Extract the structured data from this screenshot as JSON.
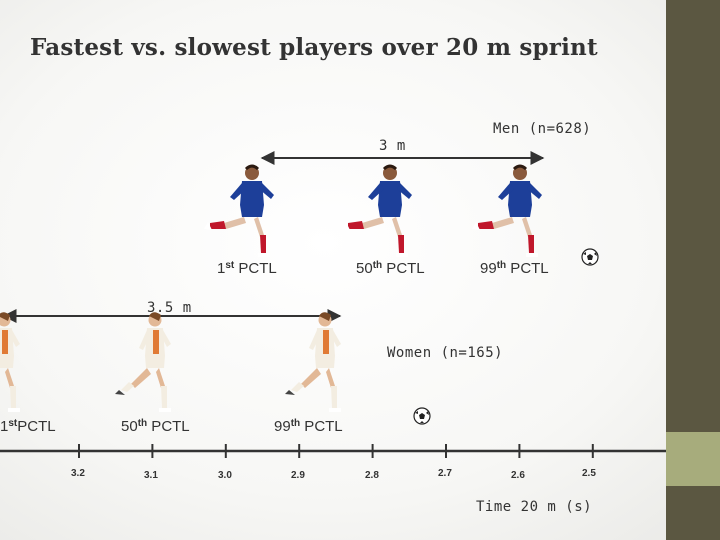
{
  "title": "Fastest vs. slowest players over 20 m sprint",
  "men": {
    "group_label": "Men (n=628)",
    "distance_label": "3 m",
    "percentiles": [
      {
        "num": "1",
        "sup": "st",
        "text": " PCTL"
      },
      {
        "num": "50",
        "sup": "th",
        "text": " PCTL"
      },
      {
        "num": "99",
        "sup": "th",
        "text": " PCTL"
      }
    ]
  },
  "women": {
    "group_label": "Women (n=165)",
    "distance_label": "3.5 m",
    "percentiles": [
      {
        "num": "1",
        "sup": "st",
        "text": "PCTL"
      },
      {
        "num": "50",
        "sup": "th",
        "text": " PCTL"
      },
      {
        "num": "99",
        "sup": "th",
        "text": " PCTL"
      }
    ]
  },
  "axis": {
    "label": "Time 20 m (s)",
    "ticks": [
      "3.2",
      "3.1",
      "3.0",
      "2.9",
      "2.8",
      "2.7",
      "2.6",
      "2.5"
    ]
  },
  "colors": {
    "accent_dark": "#5b5741",
    "accent_light": "#a7ac7c",
    "men_kit": "#1d3f99",
    "men_socks": "#c0172b",
    "women_kit": "#f3ede1",
    "women_trim": "#e07a35"
  },
  "icons": [
    "male-player-icon",
    "female-player-icon",
    "soccer-ball-icon"
  ]
}
